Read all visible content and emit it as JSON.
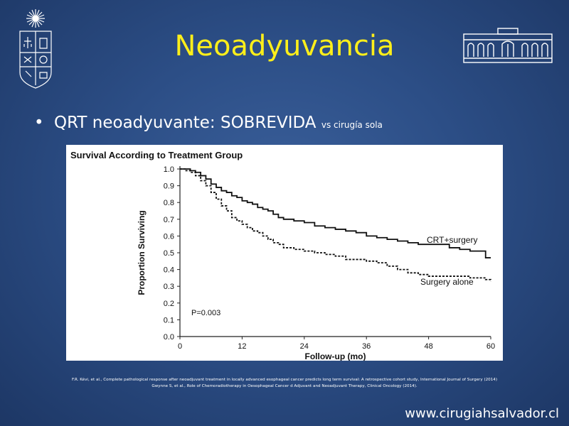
{
  "slide": {
    "title": "Neoadyuvancia",
    "bullet_main": "QRT neoadyuvante: SOBREVIDA",
    "bullet_small": "vs cirugía sola",
    "references": [
      "F.R. Kévi, et al., Complete pathological response after neoadjuvant treatment in locally advanced esophageal cancer predicts long term survival: A retrospective cohort study, International Journal of Surgery (2014)",
      "Gwynne S, et al., Role of Chemoradiotherapy in Oesophageal Cancer d Adjuvant and Neoadjuvant Therapy, Clinical Oncology (2014)."
    ],
    "website": "www.cirugiahsalvador.cl",
    "colors": {
      "background": "#2c4e86",
      "title": "#ffef1a",
      "text": "#ffffff"
    },
    "logos": [
      "university-seal-icon",
      "hospital-building-icon"
    ]
  },
  "chart_data": {
    "type": "line",
    "title": "Survival According to Treatment Group",
    "xlabel": "Follow-up (mo)",
    "ylabel": "Proportion Surviving",
    "xlim": [
      0,
      60
    ],
    "ylim": [
      0,
      1.0
    ],
    "xticks": [
      "0",
      "12",
      "24",
      "36",
      "48",
      "60"
    ],
    "xtick_values": [
      0,
      12,
      24,
      36,
      48,
      60
    ],
    "yticks": [
      "0.0",
      "0.1",
      "0.2",
      "0.3",
      "0.4",
      "0.5",
      "0.6",
      "0.7",
      "0.8",
      "0.9",
      "1.0"
    ],
    "ytick_values": [
      0,
      0.1,
      0.2,
      0.3,
      0.4,
      0.5,
      0.6,
      0.7,
      0.8,
      0.9,
      1.0
    ],
    "annotation": "P=0.003",
    "series": [
      {
        "name": "CRT+surgery",
        "style": "solid",
        "x": [
          0,
          1,
          2,
          3,
          4,
          5,
          6,
          7,
          8,
          9,
          10,
          11,
          12,
          13,
          14,
          15,
          16,
          17,
          18,
          19,
          20,
          22,
          24,
          26,
          28,
          30,
          32,
          34,
          36,
          38,
          40,
          42,
          44,
          46,
          48,
          50,
          52,
          54,
          56,
          58,
          59,
          60
        ],
        "y": [
          1.0,
          1.0,
          0.99,
          0.98,
          0.96,
          0.94,
          0.91,
          0.89,
          0.87,
          0.86,
          0.84,
          0.83,
          0.81,
          0.8,
          0.79,
          0.77,
          0.76,
          0.75,
          0.73,
          0.71,
          0.7,
          0.69,
          0.68,
          0.66,
          0.65,
          0.64,
          0.63,
          0.62,
          0.6,
          0.59,
          0.58,
          0.57,
          0.56,
          0.55,
          0.55,
          0.55,
          0.53,
          0.52,
          0.51,
          0.51,
          0.47,
          0.47
        ]
      },
      {
        "name": "Surgery alone",
        "style": "dashed",
        "x": [
          0,
          1,
          2,
          3,
          4,
          5,
          6,
          7,
          8,
          9,
          10,
          11,
          12,
          13,
          14,
          15,
          16,
          17,
          18,
          19,
          20,
          22,
          24,
          26,
          28,
          30,
          32,
          34,
          36,
          38,
          40,
          42,
          44,
          46,
          48,
          50,
          52,
          54,
          56,
          58,
          59,
          60
        ],
        "y": [
          1.0,
          0.99,
          0.98,
          0.96,
          0.93,
          0.9,
          0.86,
          0.82,
          0.78,
          0.75,
          0.71,
          0.69,
          0.67,
          0.65,
          0.63,
          0.62,
          0.6,
          0.58,
          0.56,
          0.55,
          0.53,
          0.52,
          0.51,
          0.5,
          0.49,
          0.48,
          0.46,
          0.46,
          0.45,
          0.44,
          0.42,
          0.4,
          0.38,
          0.37,
          0.36,
          0.36,
          0.36,
          0.36,
          0.35,
          0.35,
          0.34,
          0.33
        ]
      }
    ]
  }
}
